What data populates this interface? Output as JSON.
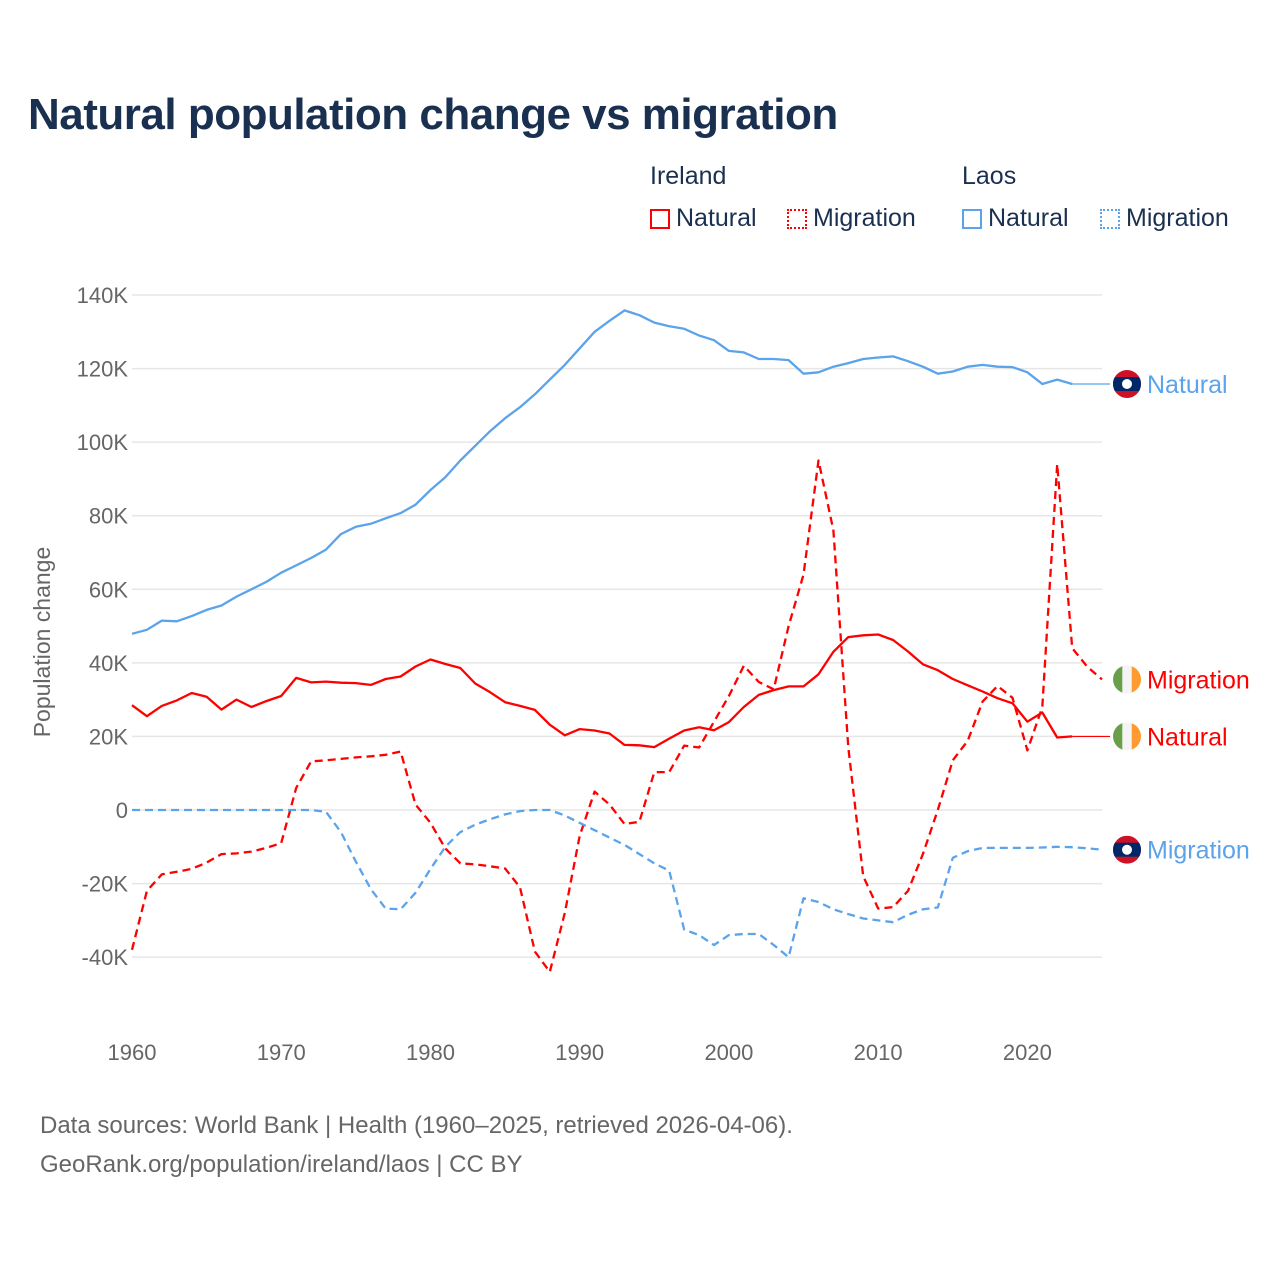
{
  "title": "Natural population change vs migration",
  "legend": {
    "groups": [
      {
        "name": "Ireland",
        "items": [
          {
            "label": "Natural",
            "style": "solid",
            "color": "#ff0000"
          },
          {
            "label": "Migration",
            "style": "dotted",
            "color": "#ff0000"
          }
        ]
      },
      {
        "name": "Laos",
        "items": [
          {
            "label": "Natural",
            "style": "solid",
            "color": "#5ba3ea"
          },
          {
            "label": "Migration",
            "style": "dotted",
            "color": "#5ba3ea"
          }
        ]
      }
    ]
  },
  "footer": {
    "line1": "Data sources: World Bank | Health (1960–2025, retrieved 2026-04-06).",
    "line2": "GeoRank.org/population/ireland/laos | CC BY"
  },
  "chart_data": {
    "type": "line",
    "title": "Natural population change vs migration",
    "xlabel": "",
    "ylabel": "Population change",
    "xlim": [
      1960,
      2025
    ],
    "ylim": [
      -40000,
      140000
    ],
    "xticks": [
      1960,
      1970,
      1980,
      1990,
      2000,
      2010,
      2020
    ],
    "xtick_labels": [
      "1960",
      "1970",
      "1980",
      "1990",
      "2000",
      "2010",
      "2020"
    ],
    "yticks": [
      -40000,
      -20000,
      0,
      20000,
      40000,
      60000,
      80000,
      100000,
      120000,
      140000
    ],
    "ytick_labels": [
      "-40K",
      "-20K",
      "0",
      "20K",
      "40K",
      "60K",
      "80K",
      "100K",
      "120K",
      "140K"
    ],
    "grid": true,
    "legend_position": "top-right",
    "start_year": 1960,
    "series": [
      {
        "name": "Laos Natural",
        "end_label": "Natural",
        "country": "Laos",
        "color": "#5ba3ea",
        "dash": false,
        "values": [
          47.9,
          49,
          51.5,
          51.3,
          52.7,
          54.4,
          55.6,
          58,
          60,
          62,
          64.5,
          66.5,
          68.5,
          70.8,
          75,
          77,
          77.8,
          79.3,
          80.7,
          83,
          87,
          90.5,
          95,
          99,
          103,
          106.5,
          109.5,
          113,
          117,
          121,
          125.5,
          130,
          133,
          135.8,
          134.5,
          132.5,
          131.5,
          130.8,
          129,
          127.7,
          124.8,
          124.4,
          122.6,
          122.6,
          122.3,
          118.6,
          119,
          120.5,
          121.5,
          122.6,
          123,
          123.3,
          122,
          120.5,
          118.6,
          119.2,
          120.5,
          121,
          120.5,
          120.4,
          119,
          115.8,
          117,
          115.8
        ]
      },
      {
        "name": "Ireland Migration",
        "end_label": "Migration",
        "country": "Ireland",
        "color": "#ff0000",
        "dash": true,
        "values": [
          -38,
          -22,
          -17.5,
          -16.8,
          -16,
          -14.3,
          -12,
          -11.8,
          -11.3,
          -10.3,
          -9,
          6,
          13.2,
          13.5,
          13.9,
          14.3,
          14.6,
          15,
          15.9,
          1.5,
          -3.5,
          -10.5,
          -14.5,
          -14.8,
          -15.3,
          -15.9,
          -21,
          -38.5,
          -44,
          -28,
          -7,
          5,
          1.5,
          -3.8,
          -3.2,
          10.3,
          10.3,
          17.5,
          17,
          24,
          31,
          39.2,
          34.8,
          32.8,
          50,
          64,
          95,
          76,
          17,
          -18,
          -26.8,
          -26.4,
          -22,
          -12,
          0,
          13.5,
          18.8,
          29.5,
          33.7,
          30.5,
          16.2,
          28,
          94,
          44,
          39,
          35.5
        ]
      },
      {
        "name": "Ireland Natural",
        "end_label": "Natural",
        "country": "Ireland",
        "color": "#ff0000",
        "dash": false,
        "values": [
          28.5,
          25.5,
          28.3,
          29.8,
          31.8,
          30.8,
          27.3,
          30,
          28,
          29.6,
          31,
          35.9,
          34.7,
          34.9,
          34.6,
          34.5,
          34,
          35.6,
          36.3,
          39,
          40.9,
          39.7,
          38.6,
          34.4,
          32,
          29.3,
          28.3,
          27.2,
          23.2,
          20.3,
          22,
          21.6,
          20.8,
          17.7,
          17.6,
          17.1,
          19.4,
          21.6,
          22.5,
          21.7,
          23.9,
          28,
          31.3,
          32.6,
          33.6,
          33.6,
          36.9,
          43,
          47,
          47.5,
          47.7,
          46.2,
          43.1,
          39.6,
          38,
          35.6,
          33.9,
          32.2,
          30.4,
          29,
          24,
          26.5,
          19.7,
          20
        ]
      },
      {
        "name": "Laos Migration",
        "end_label": "Migration",
        "country": "Laos",
        "color": "#5ba3ea",
        "dash": true,
        "values": [
          0,
          0,
          0,
          0,
          0,
          0,
          0,
          0,
          0,
          0,
          0,
          0,
          0,
          -0.5,
          -6,
          -14,
          -21.5,
          -26.8,
          -27,
          -22.5,
          -16,
          -10,
          -6,
          -4,
          -2.5,
          -1.2,
          -0.3,
          0,
          0,
          -1.5,
          -3.5,
          -5.5,
          -7.5,
          -9.5,
          -12,
          -14.5,
          -16.5,
          -32.5,
          -34,
          -36.7,
          -34,
          -33.7,
          -33.7,
          -36.7,
          -40,
          -24,
          -25,
          -27,
          -28.3,
          -29.5,
          -30,
          -30.5,
          -28.5,
          -27,
          -26.5,
          -13,
          -11.2,
          -10.3,
          -10.3,
          -10.3,
          -10.3,
          -10.2,
          -10,
          -10.1,
          -10.4,
          -10.8
        ]
      }
    ],
    "value_unit": "thousands"
  }
}
